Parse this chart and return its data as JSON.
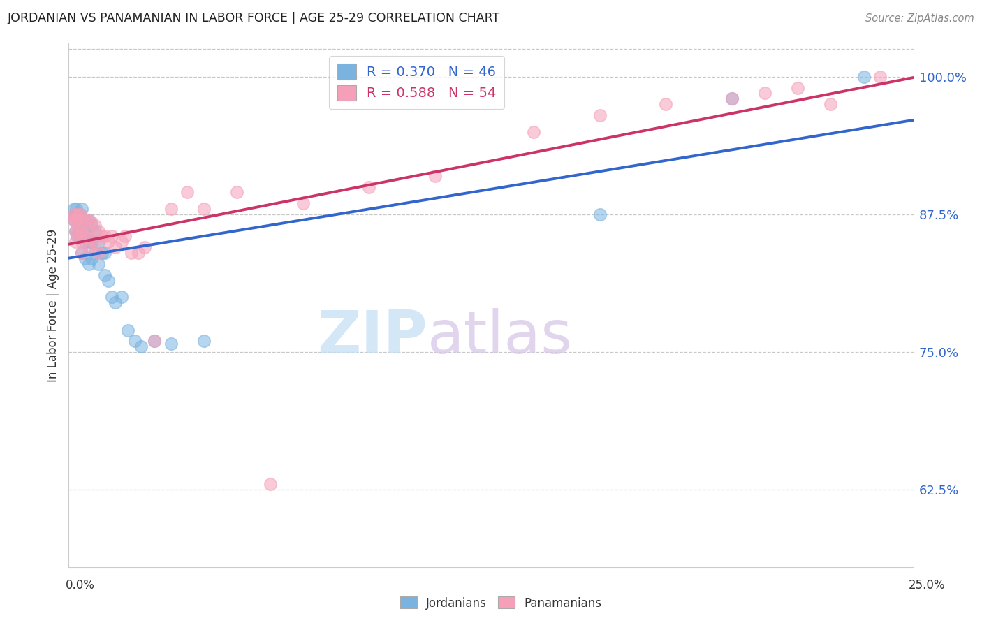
{
  "title": "JORDANIAN VS PANAMANIAN IN LABOR FORCE | AGE 25-29 CORRELATION CHART",
  "source": "Source: ZipAtlas.com",
  "ylabel": "In Labor Force | Age 25-29",
  "xmin": -0.001,
  "xmax": 0.255,
  "ymin": 0.555,
  "ymax": 1.03,
  "blue_color": "#7ab3e0",
  "pink_color": "#f5a0b8",
  "blue_line_color": "#3366cc",
  "pink_line_color": "#cc3366",
  "legend_blue_label": "R = 0.370   N = 46",
  "legend_pink_label": "R = 0.588   N = 54",
  "footer_blue": "Jordanians",
  "footer_pink": "Panamanians",
  "watermark_zip": "ZIP",
  "watermark_atlas": "atlas",
  "ytick_vals": [
    0.625,
    0.75,
    0.875,
    1.0
  ],
  "ytick_labels": [
    "62.5%",
    "75.0%",
    "87.5%",
    "100.0%"
  ],
  "blue_x": [
    0.0005,
    0.0005,
    0.0008,
    0.001,
    0.001,
    0.0012,
    0.0015,
    0.0015,
    0.002,
    0.002,
    0.002,
    0.0025,
    0.003,
    0.003,
    0.003,
    0.003,
    0.0035,
    0.004,
    0.004,
    0.004,
    0.005,
    0.005,
    0.005,
    0.006,
    0.006,
    0.006,
    0.007,
    0.007,
    0.008,
    0.008,
    0.009,
    0.01,
    0.01,
    0.011,
    0.012,
    0.013,
    0.015,
    0.017,
    0.019,
    0.021,
    0.025,
    0.03,
    0.04,
    0.16,
    0.2,
    0.24
  ],
  "blue_y": [
    0.87,
    0.88,
    0.875,
    0.875,
    0.86,
    0.88,
    0.875,
    0.855,
    0.87,
    0.865,
    0.855,
    0.875,
    0.88,
    0.87,
    0.855,
    0.84,
    0.86,
    0.87,
    0.85,
    0.835,
    0.87,
    0.85,
    0.83,
    0.865,
    0.85,
    0.835,
    0.86,
    0.84,
    0.85,
    0.83,
    0.84,
    0.84,
    0.82,
    0.815,
    0.8,
    0.795,
    0.8,
    0.77,
    0.76,
    0.755,
    0.76,
    0.758,
    0.76,
    0.875,
    0.98,
    1.0
  ],
  "pink_x": [
    0.0005,
    0.0005,
    0.0008,
    0.001,
    0.001,
    0.001,
    0.0012,
    0.0015,
    0.002,
    0.002,
    0.002,
    0.0025,
    0.003,
    0.003,
    0.003,
    0.003,
    0.004,
    0.004,
    0.005,
    0.005,
    0.005,
    0.006,
    0.006,
    0.007,
    0.007,
    0.008,
    0.008,
    0.009,
    0.01,
    0.011,
    0.012,
    0.013,
    0.015,
    0.016,
    0.018,
    0.02,
    0.022,
    0.025,
    0.03,
    0.035,
    0.04,
    0.05,
    0.06,
    0.07,
    0.09,
    0.11,
    0.14,
    0.16,
    0.18,
    0.2,
    0.21,
    0.22,
    0.23,
    0.245
  ],
  "pink_y": [
    0.875,
    0.87,
    0.875,
    0.87,
    0.86,
    0.85,
    0.87,
    0.858,
    0.875,
    0.865,
    0.855,
    0.875,
    0.87,
    0.86,
    0.85,
    0.84,
    0.87,
    0.855,
    0.87,
    0.86,
    0.845,
    0.868,
    0.852,
    0.865,
    0.848,
    0.86,
    0.84,
    0.855,
    0.855,
    0.85,
    0.855,
    0.845,
    0.85,
    0.855,
    0.84,
    0.84,
    0.845,
    0.76,
    0.88,
    0.895,
    0.88,
    0.895,
    0.63,
    0.885,
    0.9,
    0.91,
    0.95,
    0.965,
    0.975,
    0.98,
    0.985,
    0.99,
    0.975,
    1.0
  ]
}
